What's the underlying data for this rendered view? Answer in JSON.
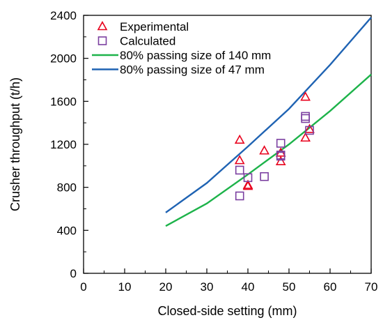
{
  "chart_data": {
    "type": "scatter",
    "xlabel": "Closed-side setting (mm)",
    "ylabel": "Crusher throughput (t/h)",
    "xlim": [
      0,
      70
    ],
    "ylim": [
      0,
      2400
    ],
    "xticks": [
      0,
      10,
      20,
      30,
      40,
      50,
      60,
      70
    ],
    "yticks": [
      0,
      400,
      800,
      1200,
      1600,
      2000,
      2400
    ],
    "grid": false,
    "legend_position": "top-left",
    "series": [
      {
        "name": "Experimental",
        "kind": "scatter",
        "marker": "triangle",
        "color": "#e8001c",
        "points": [
          {
            "x": 38,
            "y": 1240
          },
          {
            "x": 38,
            "y": 1050
          },
          {
            "x": 40,
            "y": 820
          },
          {
            "x": 40,
            "y": 810
          },
          {
            "x": 44,
            "y": 1140
          },
          {
            "x": 48,
            "y": 1120
          },
          {
            "x": 48,
            "y": 1040
          },
          {
            "x": 54,
            "y": 1640
          },
          {
            "x": 54,
            "y": 1260
          },
          {
            "x": 55,
            "y": 1340
          }
        ]
      },
      {
        "name": "Calculated",
        "kind": "scatter",
        "marker": "square",
        "color": "#7b3fa0",
        "points": [
          {
            "x": 38,
            "y": 960
          },
          {
            "x": 38,
            "y": 720
          },
          {
            "x": 40,
            "y": 890
          },
          {
            "x": 44,
            "y": 900
          },
          {
            "x": 48,
            "y": 1210
          },
          {
            "x": 48,
            "y": 1090
          },
          {
            "x": 48,
            "y": 1100
          },
          {
            "x": 54,
            "y": 1460
          },
          {
            "x": 54,
            "y": 1440
          },
          {
            "x": 55,
            "y": 1330
          }
        ]
      },
      {
        "name": "80% passing size of 140 mm",
        "kind": "line",
        "color": "#1db34a",
        "points": [
          {
            "x": 20,
            "y": 440
          },
          {
            "x": 30,
            "y": 650
          },
          {
            "x": 40,
            "y": 920
          },
          {
            "x": 50,
            "y": 1200
          },
          {
            "x": 60,
            "y": 1510
          },
          {
            "x": 70,
            "y": 1850
          }
        ]
      },
      {
        "name": "80% passing size of 47 mm",
        "kind": "line",
        "color": "#1f63b3",
        "points": [
          {
            "x": 20,
            "y": 565
          },
          {
            "x": 30,
            "y": 840
          },
          {
            "x": 40,
            "y": 1180
          },
          {
            "x": 50,
            "y": 1530
          },
          {
            "x": 60,
            "y": 1940
          },
          {
            "x": 70,
            "y": 2380
          }
        ]
      }
    ]
  }
}
